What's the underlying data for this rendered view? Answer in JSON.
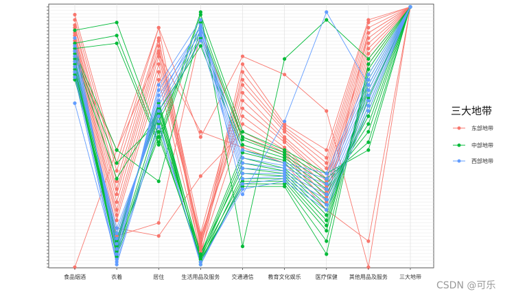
{
  "chart_data": {
    "type": "line",
    "subtype": "parallel-coordinates",
    "title": "",
    "xlabel": "",
    "ylabel": "",
    "axes": [
      "食品烟酒",
      "衣着",
      "居住",
      "生活用品及服务",
      "交通通信",
      "教育文化娱乐",
      "医疗保健",
      "其他用品及服务",
      "三大地带"
    ],
    "ylim": [
      0,
      1
    ],
    "grid": true,
    "legend": {
      "title": "三大地带",
      "position": "right",
      "entries": [
        {
          "name": "东部地带",
          "color": "#F8766D"
        },
        {
          "name": "中部地带",
          "color": "#00BA38"
        },
        {
          "name": "西部地带",
          "color": "#619CFF"
        }
      ]
    },
    "series": [
      {
        "group": "东部地带",
        "values": [
          0.0,
          0.45,
          0.92,
          0.5,
          0.81,
          0.74,
          0.6,
          0.0,
          1.0
        ]
      },
      {
        "group": "东部地带",
        "values": [
          0.97,
          0.4,
          0.92,
          0.07,
          0.78,
          0.55,
          0.45,
          0.95,
          1.0
        ]
      },
      {
        "group": "东部地带",
        "values": [
          0.95,
          0.37,
          0.88,
          0.04,
          0.75,
          0.54,
          0.42,
          0.94,
          1.0
        ]
      },
      {
        "group": "东部地带",
        "values": [
          0.93,
          0.33,
          0.87,
          0.13,
          0.72,
          0.53,
          0.4,
          0.92,
          1.0
        ]
      },
      {
        "group": "东部地带",
        "values": [
          0.92,
          0.3,
          0.85,
          0.1,
          0.7,
          0.52,
          0.38,
          0.9,
          1.0
        ]
      },
      {
        "group": "东部地带",
        "values": [
          0.9,
          0.28,
          0.83,
          0.09,
          0.67,
          0.5,
          0.36,
          0.88,
          1.0
        ]
      },
      {
        "group": "东部地带",
        "values": [
          0.89,
          0.25,
          0.81,
          0.08,
          0.64,
          0.49,
          0.34,
          0.86,
          1.0
        ]
      },
      {
        "group": "东部地带",
        "values": [
          0.88,
          0.22,
          0.78,
          0.11,
          0.61,
          0.48,
          0.33,
          0.84,
          1.0
        ]
      },
      {
        "group": "东部地带",
        "values": [
          0.87,
          0.2,
          0.75,
          0.12,
          0.58,
          0.46,
          0.31,
          0.82,
          1.0
        ]
      },
      {
        "group": "东部地带",
        "values": [
          0.86,
          0.18,
          0.72,
          0.06,
          0.55,
          0.45,
          0.29,
          0.8,
          1.0
        ]
      },
      {
        "group": "东部地带",
        "values": [
          0.85,
          0.15,
          0.12,
          0.35,
          0.52,
          0.44,
          0.27,
          0.78,
          1.0
        ]
      },
      {
        "group": "东部地带",
        "values": [
          0.84,
          0.12,
          0.17,
          0.9,
          0.5,
          0.43,
          0.25,
          0.9,
          1.0
        ]
      },
      {
        "group": "东部地带",
        "values": [
          0.8,
          0.45,
          0.82,
          0.52,
          0.46,
          0.4,
          0.22,
          0.1,
          1.0
        ]
      },
      {
        "group": "中部地带",
        "values": [
          0.91,
          0.94,
          0.5,
          0.98,
          0.08,
          0.8,
          0.95,
          0.8,
          1.0
        ]
      },
      {
        "group": "中部地带",
        "values": [
          0.86,
          0.89,
          0.48,
          0.97,
          0.52,
          0.45,
          0.36,
          0.45,
          1.0
        ]
      },
      {
        "group": "中部地带",
        "values": [
          0.84,
          0.86,
          0.47,
          0.94,
          0.5,
          0.44,
          0.34,
          0.48,
          1.0
        ]
      },
      {
        "group": "中部地带",
        "values": [
          0.83,
          0.45,
          0.33,
          0.92,
          0.49,
          0.43,
          0.32,
          0.52,
          1.0
        ]
      },
      {
        "group": "中部地带",
        "values": [
          0.82,
          0.4,
          0.56,
          0.88,
          0.47,
          0.42,
          0.3,
          0.55,
          1.0
        ]
      },
      {
        "group": "中部地带",
        "values": [
          0.81,
          0.34,
          0.6,
          0.85,
          0.45,
          0.41,
          0.28,
          0.58,
          1.0
        ]
      },
      {
        "group": "中部地带",
        "values": [
          0.8,
          0.1,
          0.62,
          0.05,
          0.44,
          0.4,
          0.26,
          0.6,
          1.0
        ]
      },
      {
        "group": "中部地带",
        "values": [
          0.79,
          0.08,
          0.64,
          0.04,
          0.42,
          0.38,
          0.24,
          0.62,
          1.0
        ]
      },
      {
        "group": "中部地带",
        "values": [
          0.78,
          0.06,
          0.58,
          0.03,
          0.4,
          0.37,
          0.22,
          0.65,
          1.0
        ]
      },
      {
        "group": "中部地带",
        "values": [
          0.77,
          0.05,
          0.55,
          0.05,
          0.38,
          0.36,
          0.2,
          0.68,
          1.0
        ]
      },
      {
        "group": "中部地带",
        "values": [
          0.76,
          0.04,
          0.52,
          0.02,
          0.36,
          0.35,
          0.18,
          0.7,
          1.0
        ]
      },
      {
        "group": "中部地带",
        "values": [
          0.75,
          0.07,
          0.5,
          0.04,
          0.34,
          0.34,
          0.16,
          0.72,
          1.0
        ]
      },
      {
        "group": "中部地带",
        "values": [
          0.74,
          0.09,
          0.63,
          0.01,
          0.33,
          0.33,
          0.14,
          0.74,
          1.0
        ]
      },
      {
        "group": "中部地带",
        "values": [
          0.73,
          0.11,
          0.61,
          0.02,
          0.32,
          0.32,
          0.1,
          0.76,
          1.0
        ]
      },
      {
        "group": "中部地带",
        "values": [
          0.72,
          0.13,
          0.59,
          0.03,
          0.31,
          0.31,
          0.05,
          0.78,
          1.0
        ]
      },
      {
        "group": "西部地带",
        "values": [
          0.63,
          0.03,
          0.7,
          0.95,
          0.28,
          0.56,
          0.98,
          0.7,
          1.0
        ]
      },
      {
        "group": "西部地带",
        "values": [
          0.88,
          0.05,
          0.68,
          0.92,
          0.45,
          0.4,
          0.36,
          0.74,
          1.0
        ]
      },
      {
        "group": "西部地带",
        "values": [
          0.85,
          0.07,
          0.66,
          0.9,
          0.42,
          0.39,
          0.34,
          0.72,
          1.0
        ]
      },
      {
        "group": "西部地带",
        "values": [
          0.83,
          0.09,
          0.64,
          0.93,
          0.4,
          0.38,
          0.32,
          0.7,
          1.0
        ]
      },
      {
        "group": "西部地带",
        "values": [
          0.81,
          0.11,
          0.62,
          0.91,
          0.38,
          0.37,
          0.3,
          0.68,
          1.0
        ]
      },
      {
        "group": "西部地带",
        "values": [
          0.79,
          0.13,
          0.6,
          0.89,
          0.36,
          0.36,
          0.28,
          0.66,
          1.0
        ]
      },
      {
        "group": "西部地带",
        "values": [
          0.77,
          0.15,
          0.58,
          0.87,
          0.34,
          0.35,
          0.26,
          0.64,
          1.0
        ]
      },
      {
        "group": "西部地带",
        "values": [
          0.75,
          0.02,
          0.56,
          0.01,
          0.32,
          0.34,
          0.24,
          0.62,
          1.0
        ]
      },
      {
        "group": "西部地带",
        "values": [
          0.73,
          0.01,
          0.54,
          0.02,
          0.3,
          0.33,
          0.22,
          0.6,
          1.0
        ]
      }
    ]
  },
  "watermark": "CSDN @可乐"
}
